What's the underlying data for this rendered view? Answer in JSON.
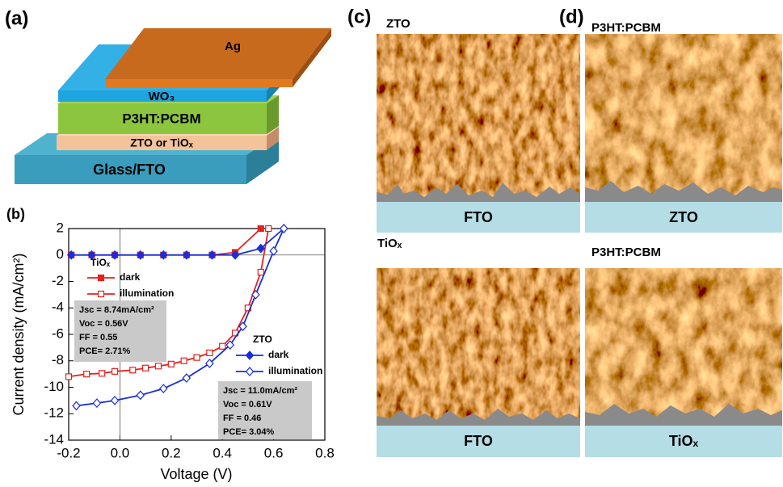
{
  "panels": {
    "a": "(a)",
    "b": "(b)",
    "c": "(c)",
    "d": "(d)"
  },
  "device": {
    "layers": [
      "Ag",
      "WO₃",
      "P3HT:PCBM",
      "ZTO or TiOₓ",
      "Glass/FTO"
    ]
  },
  "afm": [
    {
      "label": "ZTO",
      "substrate": "FTO"
    },
    {
      "label": "P3HT:PCBM",
      "substrate": "ZTO"
    },
    {
      "label": "TiOₓ",
      "substrate": "FTO"
    },
    {
      "label": "P3HT:PCBM",
      "substrate": "TiOₓ"
    }
  ],
  "chart_data": {
    "type": "line",
    "x_label": "Voltage (V)",
    "y_label": "Current density (mA/cm²)",
    "xlim": [
      -0.2,
      0.8
    ],
    "ylim": [
      -14,
      2
    ],
    "xticks": [
      -0.2,
      {
        "value": 0,
        "label": "0.0"
      },
      0.2,
      0.4,
      0.6,
      0.8
    ],
    "yticks": [
      -14,
      -12,
      -10,
      -8,
      -6,
      -4,
      -2,
      0,
      2
    ],
    "legend_titles": [
      "TiOₓ",
      "ZTO"
    ],
    "series": [
      {
        "name": "dark",
        "color": "#e8201c",
        "marker": "square",
        "filled": true,
        "x": [
          -0.19,
          -0.11,
          -0.02,
          0.08,
          0.17,
          0.26,
          0.36,
          0.45,
          0.55
        ],
        "values": [
          0,
          0,
          0,
          0,
          0,
          0,
          0,
          0.2,
          2
        ]
      },
      {
        "name": "illumination",
        "color": "#e8201c",
        "marker": "square",
        "filled": false,
        "x": [
          -0.2,
          -0.13,
          -0.07,
          -0.02,
          0.05,
          0.1,
          0.15,
          0.2,
          0.25,
          0.3,
          0.35,
          0.4,
          0.45,
          0.5,
          0.55,
          0.58
        ],
        "values": [
          -9.2,
          -9.0,
          -8.95,
          -8.8,
          -8.7,
          -8.55,
          -8.4,
          -8.25,
          -8.0,
          -7.75,
          -7.4,
          -6.9,
          -5.9,
          -4.0,
          -1.3,
          2
        ]
      },
      {
        "name": "dark",
        "color": "#1a2ed8",
        "marker": "diamond",
        "filled": true,
        "x": [
          -0.19,
          -0.11,
          -0.02,
          0.08,
          0.17,
          0.26,
          0.36,
          0.45,
          0.55,
          0.64
        ],
        "values": [
          0,
          0,
          0,
          0,
          0,
          0,
          0,
          0,
          0.5,
          2
        ]
      },
      {
        "name": "illumination",
        "color": "#1a2ed8",
        "marker": "diamond",
        "filled": false,
        "x": [
          -0.17,
          -0.09,
          -0.02,
          0.08,
          0.17,
          0.26,
          0.35,
          0.43,
          0.48,
          0.53,
          0.6,
          0.64
        ],
        "values": [
          -11.4,
          -11.2,
          -11.0,
          -10.6,
          -10.1,
          -9.3,
          -8.2,
          -6.8,
          -5.4,
          -3.0,
          0.3,
          2
        ]
      }
    ],
    "boxes": [
      [
        "Jsc = 8.74mA/cm²",
        "Voc = 0.56V",
        "FF = 0.55",
        "PCE= 2.71%"
      ],
      [
        "Jsc = 11.0mA/cm²",
        "Voc = 0.61V",
        "FF = 0.46",
        "PCE= 3.04%"
      ]
    ]
  }
}
